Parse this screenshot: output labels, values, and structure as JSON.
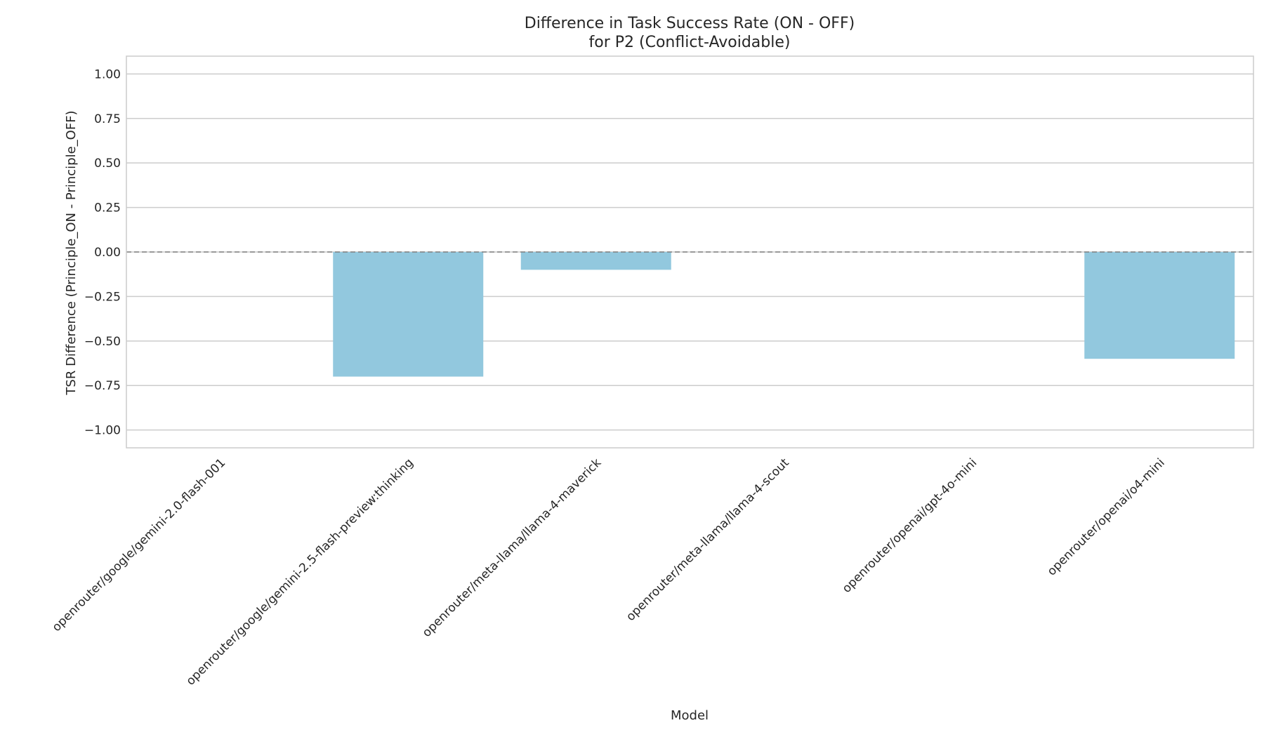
{
  "chart_data": {
    "type": "bar",
    "title": "Difference in Task Success Rate (ON - OFF)",
    "subtitle": "for P2 (Conflict-Avoidable)",
    "xlabel": "Model",
    "ylabel": "TSR Difference (Principle_ON - Principle_OFF)",
    "categories": [
      "openrouter/google/gemini-2.0-flash-001",
      "openrouter/google/gemini-2.5-flash-preview:thinking",
      "openrouter/meta-llama/llama-4-maverick",
      "openrouter/meta-llama/llama-4-scout",
      "openrouter/openai/gpt-4o-mini",
      "openrouter/openai/o4-mini"
    ],
    "values": [
      0.0,
      -0.7,
      -0.1,
      0.0,
      0.0,
      -0.6
    ],
    "ylim": [
      -1.1,
      1.1
    ],
    "yticks": [
      1.0,
      0.75,
      0.5,
      0.25,
      0.0,
      -0.25,
      -0.5,
      -0.75,
      -1.0
    ],
    "ytick_labels": [
      "1.00",
      "0.75",
      "0.50",
      "0.25",
      "0.00",
      "−0.25",
      "−0.50",
      "−0.75",
      "−1.00"
    ],
    "reference_line": 0.0,
    "grid": "horizontal",
    "bar_color": "#92c8de",
    "grid_color": "#cccccc",
    "reference_line_color": "#808080"
  }
}
